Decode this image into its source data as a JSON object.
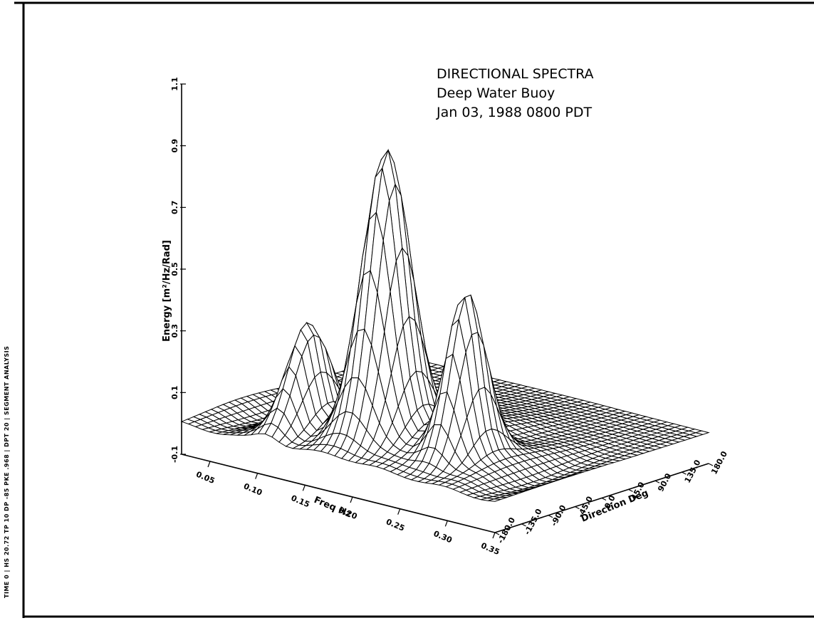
{
  "chart_data": {
    "type": "surface",
    "title_lines": [
      "DIRECTIONAL SPECTRA",
      "Deep Water Buoy",
      "Jan 03, 1988 0800 PDT"
    ],
    "xlabel": "Freq Hz",
    "ylabel": "Direction Deg",
    "zlabel": "Energy [m²/Hz/Rad]",
    "x_ticks": [
      "0.05",
      "0.10",
      "0.15",
      "0.20",
      "0.25",
      "0.30",
      "0.35"
    ],
    "y_ticks": [
      "-180.0",
      "-135.0",
      "-90.0",
      "-45.0",
      "0.0",
      "45.0",
      "90.0",
      "135.0",
      "180.0"
    ],
    "z_ticks": [
      "-0.1",
      "0.1",
      "0.3",
      "0.5",
      "0.7",
      "0.9",
      "1.1"
    ],
    "xlim": [
      0.02,
      0.35
    ],
    "ylim": [
      -180,
      180
    ],
    "zlim": [
      -0.1,
      1.1
    ],
    "peaks": [
      {
        "freq": 0.18,
        "direction": -90,
        "energy": 0.93
      },
      {
        "freq": 0.11,
        "direction": -110,
        "energy": 0.35
      },
      {
        "freq": 0.26,
        "direction": -85,
        "energy": 0.55
      }
    ],
    "grid": false,
    "legend": "none"
  },
  "margin": {
    "left_text": "TIME 0 | HS 20.72 TP 10 DP -85 PKE .968 | DPT 20 | SEGMENT ANALYSIS"
  },
  "colors": {
    "line": "#000000",
    "face": "#ffffff"
  }
}
